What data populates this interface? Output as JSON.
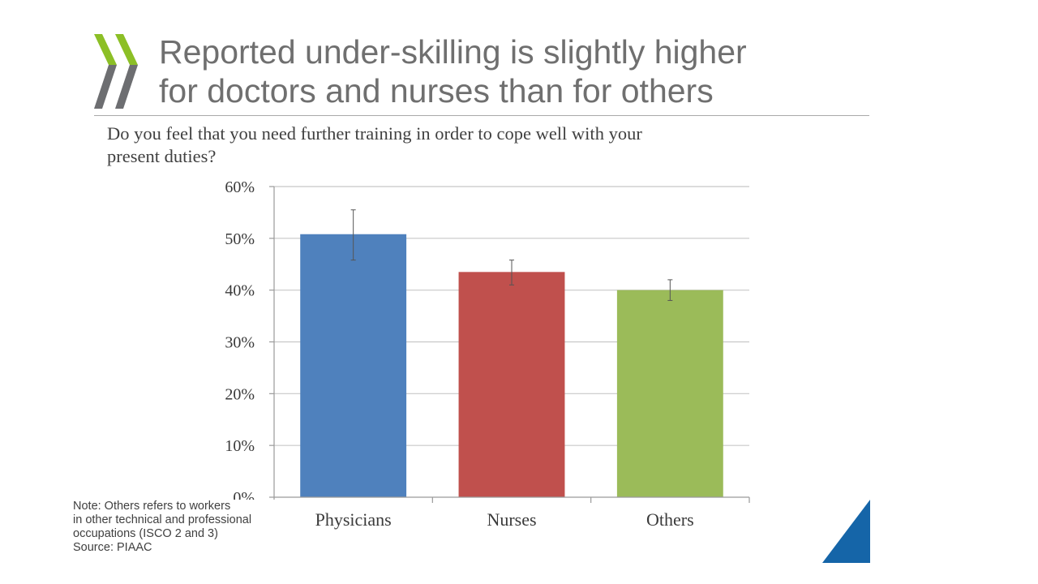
{
  "slide": {
    "title_lines": [
      "Reported under-skilling is slightly higher",
      "for doctors and nurses than for others"
    ],
    "question_lines": [
      "Do you feel that you need further training in order to cope well with your",
      "present duties?"
    ],
    "note_lines": [
      "Note: Others refers to workers",
      "in other technical and professional",
      "occupations (ISCO 2 and 3)",
      "Source: PIAAC"
    ]
  },
  "colors": {
    "title": "#6f6f6f",
    "logo_green": "#8cbf26",
    "logo_gray": "#6d6e71",
    "corner_blue": "#1565a8"
  },
  "chart_data": {
    "type": "bar",
    "title": "Do you feel that you need further training in order to cope well with your present duties?",
    "xlabel": "",
    "ylabel": "",
    "categories": [
      "Physicians",
      "Nurses",
      "Others"
    ],
    "values": [
      50.8,
      43.5,
      40.0
    ],
    "error_low": [
      45.8,
      41.0,
      38.0
    ],
    "error_high": [
      55.5,
      45.8,
      42.0
    ],
    "colors": [
      "#4f81bd",
      "#c0504d",
      "#9bbb59"
    ],
    "ylim": [
      0,
      60
    ],
    "yticks": [
      0,
      10,
      20,
      30,
      40,
      50,
      60
    ],
    "ytick_labels": [
      "0%",
      "10%",
      "20%",
      "30%",
      "40%",
      "50%",
      "60%"
    ],
    "grid": true,
    "legend": "none"
  }
}
